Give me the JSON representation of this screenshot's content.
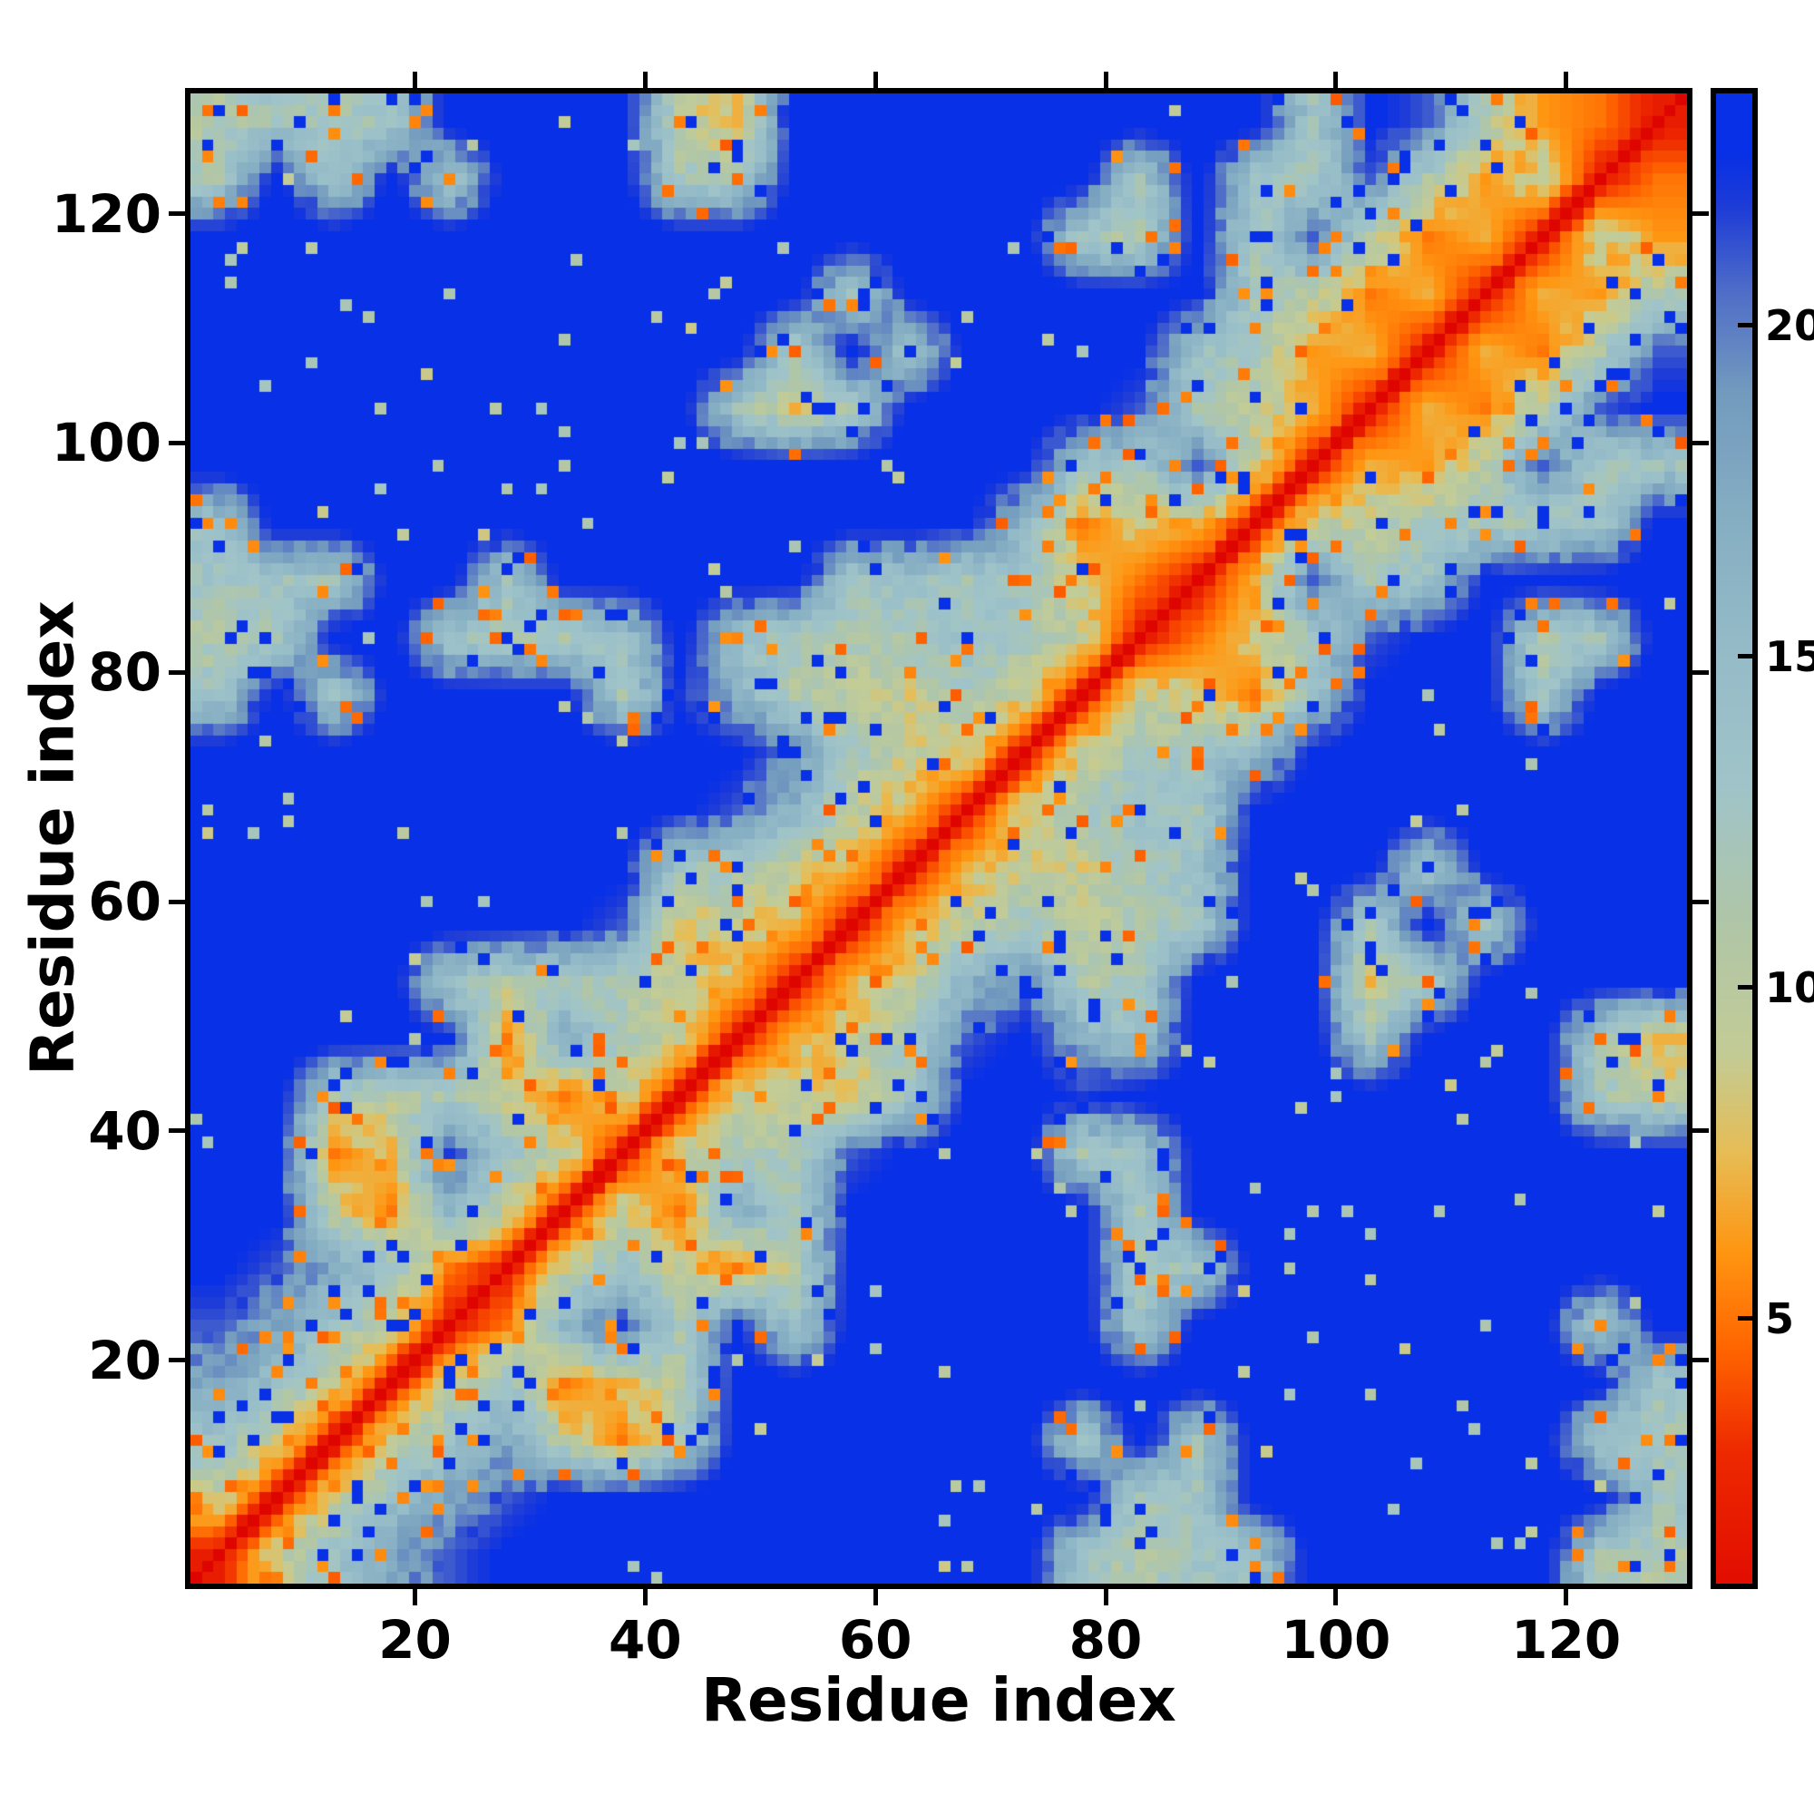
{
  "figure": {
    "background": "#ffffff",
    "frame_color": "#000000"
  },
  "chart_data": {
    "type": "heatmap",
    "title": "",
    "xlabel": "Residue index",
    "ylabel": "Residue index",
    "n_residues": 130,
    "x_ticks": [
      20,
      40,
      60,
      80,
      100,
      120
    ],
    "y_ticks": [
      20,
      40,
      60,
      80,
      100,
      120
    ],
    "colorbar": {
      "ticks": [
        5,
        10,
        15,
        20
      ],
      "vmin": 1,
      "vmax": 23.5
    },
    "colormap_stops": [
      [
        0,
        "#dc0000"
      ],
      [
        3,
        "#ee2a00"
      ],
      [
        4.5,
        "#ff6400"
      ],
      [
        6,
        "#ff9612"
      ],
      [
        7.5,
        "#e7bd55"
      ],
      [
        9,
        "#c3cc96"
      ],
      [
        11,
        "#b0c6a8"
      ],
      [
        13,
        "#a0c4c8"
      ],
      [
        15,
        "#96bcc8"
      ],
      [
        17,
        "#87afc3"
      ],
      [
        19,
        "#739bbe"
      ],
      [
        20.5,
        "#506ec8"
      ],
      [
        21.8,
        "#1e3cd7"
      ],
      [
        22.6,
        "#0830e6"
      ],
      [
        24,
        "#0830e6"
      ]
    ],
    "diagonal_slope": 2.4,
    "noise_seed": 42,
    "coarse_bin_size": 5,
    "coarse_matrix": [
      [
        2,
        9,
        14,
        18,
        21,
        23,
        24,
        24,
        24,
        24,
        24,
        24,
        24,
        24,
        24,
        13,
        11,
        13,
        14,
        24,
        24,
        24,
        24,
        24,
        12,
        11
      ],
      [
        9,
        2,
        9,
        14,
        18,
        21,
        23,
        24,
        24,
        24,
        24,
        24,
        24,
        24,
        24,
        24,
        12,
        13,
        24,
        24,
        24,
        24,
        24,
        24,
        24,
        13
      ],
      [
        14,
        9,
        2,
        9,
        14,
        18,
        10,
        5,
        12,
        24,
        24,
        24,
        24,
        24,
        24,
        13,
        24,
        13,
        24,
        24,
        24,
        24,
        24,
        24,
        13,
        12
      ],
      [
        18,
        14,
        9,
        2,
        9,
        14,
        5,
        8,
        10,
        24,
        24,
        24,
        24,
        24,
        24,
        24,
        24,
        24,
        24,
        24,
        24,
        24,
        24,
        24,
        24,
        13
      ],
      [
        21,
        18,
        14,
        9,
        2,
        5,
        16,
        22,
        12,
        23,
        13,
        24,
        24,
        24,
        24,
        24,
        13,
        24,
        24,
        24,
        24,
        24,
        24,
        24,
        13,
        24
      ],
      [
        23,
        21,
        18,
        14,
        5,
        2,
        9,
        14,
        9,
        5,
        11,
        24,
        24,
        24,
        24,
        24,
        12,
        13,
        24,
        24,
        24,
        24,
        24,
        24,
        24,
        24
      ],
      [
        24,
        23,
        10,
        5,
        16,
        9,
        2,
        9,
        5,
        17,
        12,
        23,
        24,
        24,
        24,
        24,
        12,
        24,
        24,
        24,
        24,
        24,
        24,
        24,
        24,
        24
      ],
      [
        24,
        24,
        5,
        8,
        22,
        14,
        9,
        2,
        9,
        12,
        11,
        21,
        23,
        24,
        24,
        12,
        13,
        24,
        24,
        24,
        24,
        24,
        24,
        24,
        24,
        24
      ],
      [
        24,
        24,
        12,
        10,
        12,
        9,
        5,
        9,
        2,
        9,
        9,
        8,
        13,
        23,
        24,
        22,
        24,
        24,
        24,
        24,
        24,
        24,
        24,
        24,
        12,
        10
      ],
      [
        24,
        24,
        24,
        24,
        23,
        5,
        17,
        12,
        9,
        2,
        7,
        9,
        12,
        21,
        23,
        17,
        14,
        24,
        24,
        24,
        13,
        24,
        24,
        24,
        12,
        7
      ],
      [
        24,
        24,
        24,
        24,
        13,
        11,
        12,
        11,
        9,
        7,
        2,
        7,
        9,
        16,
        20,
        11,
        12,
        24,
        24,
        24,
        8,
        12,
        24,
        24,
        24,
        24
      ],
      [
        24,
        24,
        24,
        24,
        24,
        24,
        23,
        21,
        8,
        9,
        7,
        2,
        7,
        10,
        12,
        10,
        11,
        13,
        24,
        24,
        12,
        24,
        13,
        24,
        24,
        24
      ],
      [
        24,
        24,
        24,
        24,
        24,
        24,
        24,
        23,
        13,
        12,
        9,
        7,
        2,
        7,
        9,
        9,
        12,
        14,
        24,
        24,
        24,
        13,
        24,
        24,
        24,
        24
      ],
      [
        24,
        24,
        24,
        24,
        24,
        24,
        24,
        24,
        23,
        21,
        16,
        10,
        7,
        2,
        9,
        12,
        14,
        12,
        23,
        24,
        24,
        24,
        24,
        24,
        24,
        24
      ],
      [
        24,
        24,
        24,
        24,
        24,
        24,
        24,
        24,
        24,
        23,
        20,
        12,
        9,
        9,
        2,
        9,
        12,
        13,
        16,
        23,
        24,
        24,
        24,
        24,
        24,
        24
      ],
      [
        13,
        24,
        13,
        24,
        24,
        24,
        24,
        12,
        22,
        17,
        11,
        10,
        9,
        12,
        9,
        2,
        9,
        8,
        5,
        14,
        23,
        24,
        24,
        12,
        24,
        24
      ],
      [
        11,
        12,
        24,
        24,
        13,
        12,
        12,
        13,
        24,
        14,
        12,
        11,
        12,
        14,
        12,
        9,
        2,
        5,
        8,
        12,
        21,
        23,
        24,
        11,
        13,
        24
      ],
      [
        13,
        13,
        13,
        24,
        24,
        13,
        24,
        24,
        24,
        24,
        24,
        13,
        14,
        12,
        13,
        8,
        5,
        2,
        7,
        21,
        12,
        14,
        23,
        24,
        24,
        24
      ],
      [
        14,
        24,
        24,
        24,
        24,
        24,
        24,
        24,
        24,
        24,
        24,
        24,
        24,
        23,
        16,
        5,
        8,
        7,
        2,
        9,
        10,
        12,
        12,
        12,
        13,
        24
      ],
      [
        24,
        24,
        24,
        24,
        24,
        24,
        24,
        24,
        24,
        24,
        24,
        24,
        24,
        24,
        23,
        14,
        12,
        21,
        9,
        2,
        7,
        6,
        11,
        21,
        12,
        13
      ],
      [
        24,
        24,
        24,
        24,
        24,
        24,
        24,
        24,
        24,
        13,
        8,
        12,
        24,
        24,
        24,
        23,
        21,
        12,
        10,
        7,
        2,
        7,
        5,
        11,
        21,
        23
      ],
      [
        24,
        24,
        24,
        24,
        24,
        24,
        24,
        24,
        24,
        24,
        12,
        24,
        13,
        24,
        24,
        24,
        23,
        14,
        12,
        6,
        7,
        2,
        7,
        5,
        11,
        21
      ],
      [
        24,
        24,
        24,
        24,
        24,
        24,
        24,
        24,
        24,
        24,
        24,
        13,
        24,
        24,
        24,
        24,
        24,
        23,
        12,
        11,
        5,
        7,
        2,
        7,
        6,
        11
      ],
      [
        24,
        24,
        24,
        24,
        24,
        24,
        24,
        24,
        24,
        24,
        24,
        24,
        24,
        24,
        24,
        12,
        11,
        24,
        12,
        21,
        11,
        5,
        7,
        2,
        9,
        6
      ],
      [
        12,
        24,
        13,
        24,
        13,
        24,
        24,
        24,
        12,
        12,
        24,
        24,
        24,
        24,
        24,
        24,
        13,
        24,
        13,
        12,
        21,
        11,
        6,
        9,
        2,
        5
      ],
      [
        11,
        13,
        12,
        13,
        24,
        24,
        24,
        24,
        10,
        7,
        24,
        24,
        24,
        24,
        24,
        24,
        24,
        24,
        24,
        13,
        23,
        21,
        11,
        6,
        5,
        2
      ]
    ]
  }
}
